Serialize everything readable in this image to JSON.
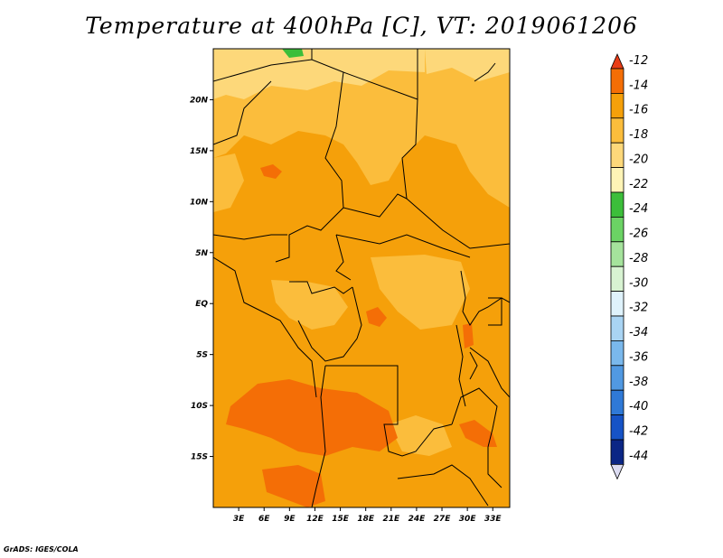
{
  "title": "Temperature at 400hPa [C], VT: 2019061206",
  "credit": "GrADS: IGES/COLA",
  "map": {
    "lat_labels": [
      "20N",
      "15N",
      "10N",
      "5N",
      "EQ",
      "5S",
      "10S",
      "15S"
    ],
    "lat_values": [
      20,
      15,
      10,
      5,
      0,
      -5,
      -10,
      -15
    ],
    "lon_labels": [
      "3E",
      "6E",
      "9E",
      "12E",
      "15E",
      "18E",
      "21E",
      "24E",
      "27E",
      "30E",
      "33E"
    ],
    "lon_values": [
      3,
      6,
      9,
      12,
      15,
      18,
      21,
      24,
      27,
      30,
      33
    ],
    "lon_range": [
      0,
      35
    ],
    "lat_range": [
      -20,
      25
    ]
  },
  "colorbar": {
    "labels": [
      "-12",
      "-14",
      "-16",
      "-18",
      "-20",
      "-22",
      "-24",
      "-26",
      "-28",
      "-30",
      "-32",
      "-34",
      "-36",
      "-38",
      "-40",
      "-42",
      "-44"
    ],
    "colors": [
      "#e83c16",
      "#f46e06",
      "#f5a00a",
      "#fbbd3c",
      "#fdd87a",
      "#fef4b6",
      "#3cbe3a",
      "#6bd364",
      "#a5e39c",
      "#d8f3d2",
      "#dff2fb",
      "#a9d4f3",
      "#7ab8ec",
      "#5199e2",
      "#2f79d7",
      "#1653c6",
      "#0b2685",
      "#0b1060"
    ]
  },
  "colors": {
    "dominant_field": "#f5a00a",
    "warm_field": "#f46e06",
    "cool_field": "#fbbd3c",
    "coolest_field": "#fdd87a",
    "green_patch": "#3cbe3a"
  }
}
